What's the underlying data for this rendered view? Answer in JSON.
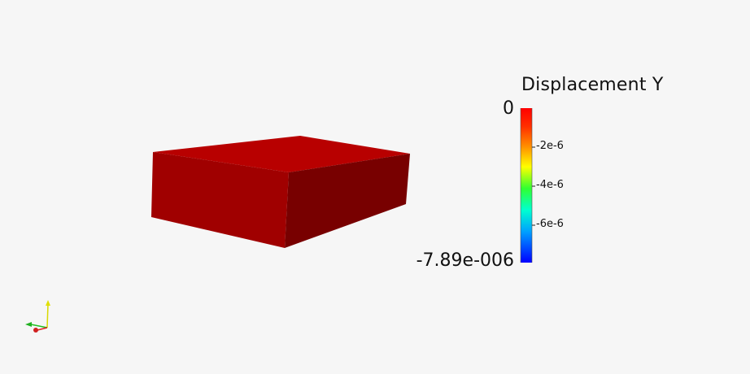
{
  "colorbar": {
    "title": "Displacement Y",
    "range_max_label": "0",
    "range_min_label": "-7.89e-006",
    "tick_labels": [
      "-2e-6",
      "-4e-6",
      "-6e-6"
    ],
    "colormap_colors": [
      "#ff0000",
      "#ff8000",
      "#ffff00",
      "#00ff00",
      "#00ffff",
      "#0080ff",
      "#0000ff"
    ]
  },
  "model": {
    "top_color": "#b80000",
    "front_color": "#a00000",
    "side_color": "#780000"
  },
  "orientation_axes": {
    "x_color": "#e02020",
    "y_color": "#e0e000",
    "z_color": "#20c020"
  }
}
